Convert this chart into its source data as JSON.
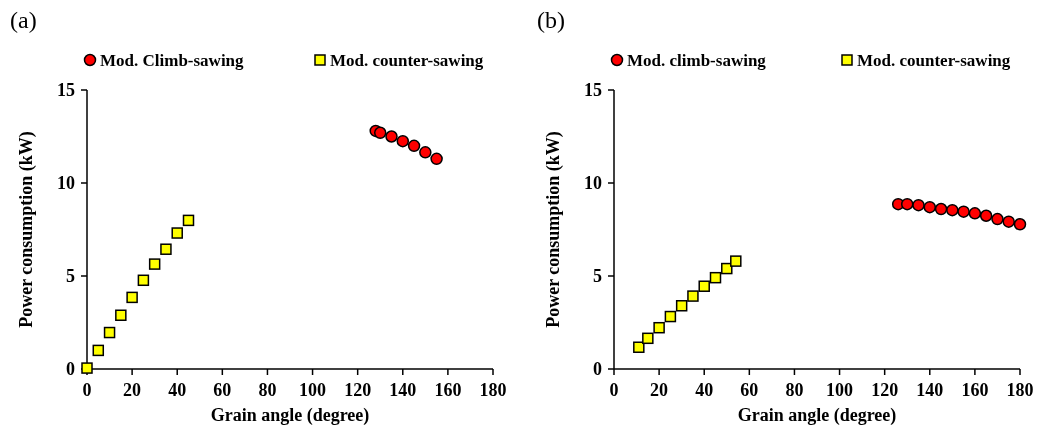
{
  "chart_data": [
    {
      "type": "scatter",
      "title": "(a)",
      "xlabel": "Grain angle (degree)",
      "ylabel": "Power consumption (kW)",
      "xlim": [
        0,
        180
      ],
      "xticks": [
        0,
        20,
        40,
        60,
        80,
        100,
        120,
        140,
        160,
        180
      ],
      "ylim": [
        0,
        15
      ],
      "yticks": [
        0,
        5,
        10,
        15
      ],
      "grid": false,
      "legend": "top",
      "series": [
        {
          "name": "Mod. Climb-sawing",
          "color": "#ff0000",
          "marker": "circle",
          "x": [
            128,
            130,
            135,
            140,
            145,
            150,
            155
          ],
          "values": [
            12.8,
            12.7,
            12.5,
            12.25,
            12.0,
            11.65,
            11.3
          ]
        },
        {
          "name": "Mod. counter-sawing",
          "color": "#ffff00",
          "marker": "square",
          "x": [
            0,
            5,
            10,
            15,
            20,
            25,
            30,
            35,
            40,
            45
          ],
          "values": [
            0.05,
            1.0,
            1.96,
            2.89,
            3.85,
            4.77,
            5.64,
            6.44,
            7.31,
            7.99
          ]
        }
      ]
    },
    {
      "type": "scatter",
      "title": "(b)",
      "xlabel": "Grain angle (degree)",
      "ylabel": "Power consumption (kW)",
      "xlim": [
        0,
        180
      ],
      "xticks": [
        0,
        20,
        40,
        60,
        80,
        100,
        120,
        140,
        160,
        180
      ],
      "ylim": [
        0,
        15
      ],
      "yticks": [
        0,
        5,
        10,
        15
      ],
      "grid": false,
      "legend": "top",
      "series": [
        {
          "name": "Mod. climb-sawing",
          "color": "#ff0000",
          "marker": "circle",
          "x": [
            126,
            130,
            135,
            140,
            145,
            150,
            155,
            160,
            165,
            170,
            175,
            180
          ],
          "values": [
            8.86,
            8.86,
            8.81,
            8.7,
            8.6,
            8.54,
            8.46,
            8.37,
            8.24,
            8.06,
            7.92,
            7.78
          ]
        },
        {
          "name": "Mod. counter-sawing",
          "color": "#ffff00",
          "marker": "square",
          "x": [
            11,
            15,
            20,
            25,
            30,
            35,
            40,
            45,
            50,
            54
          ],
          "values": [
            1.17,
            1.65,
            2.22,
            2.82,
            3.4,
            3.92,
            4.45,
            4.91,
            5.4,
            5.8
          ]
        }
      ]
    }
  ]
}
